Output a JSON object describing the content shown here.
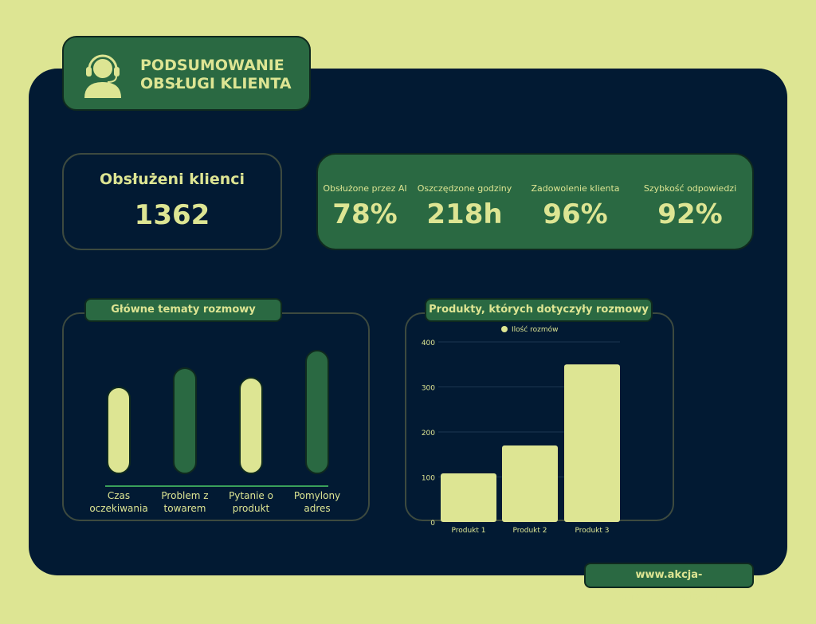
{
  "header": {
    "title_line1": "PODSUMOWANIE",
    "title_line2": "OBSŁUGI KLIENTA",
    "icon": "customer-service-icon"
  },
  "clients": {
    "label": "Obsłużeni klienci",
    "value": "1362"
  },
  "stats": [
    {
      "label": "Obsłużone przez AI",
      "value": "78%"
    },
    {
      "label": "Oszczędzone godziny",
      "value": "218h"
    },
    {
      "label": "Zadowolenie klienta",
      "value": "96%"
    },
    {
      "label": "Szybkość odpowiedzi",
      "value": "92%"
    }
  ],
  "topics_title": "Główne tematy rozmowy",
  "products_title": "Produkty, których dotyczyły rozmowy",
  "footer": {
    "url": "www.akcja-automatyzajca.pl"
  },
  "colors": {
    "background": "#dde593",
    "panel": "#021a33",
    "green": "#2a6942",
    "accent": "#dde593"
  },
  "chart_data": [
    {
      "type": "bar",
      "categories": [
        "Czas oczekiwania",
        "Problem z towarem",
        "Pytanie o produkt",
        "Pomylony adres"
      ],
      "values": [
        54,
        66,
        60,
        77
      ],
      "colors": [
        "#dde593",
        "#2a6942",
        "#dde593",
        "#2a6942"
      ],
      "grid": false,
      "legend": "none"
    },
    {
      "type": "bar",
      "categories": [
        "Produkt 1",
        "Produkt 2",
        "Produkt 3"
      ],
      "series": [
        {
          "name": "Ilość rozmów",
          "values": [
            108,
            170,
            350
          ]
        }
      ],
      "ylim": [
        0,
        400
      ],
      "yticks": [
        0,
        100,
        200,
        300,
        400
      ],
      "grid": true,
      "legend": "top-center"
    }
  ]
}
